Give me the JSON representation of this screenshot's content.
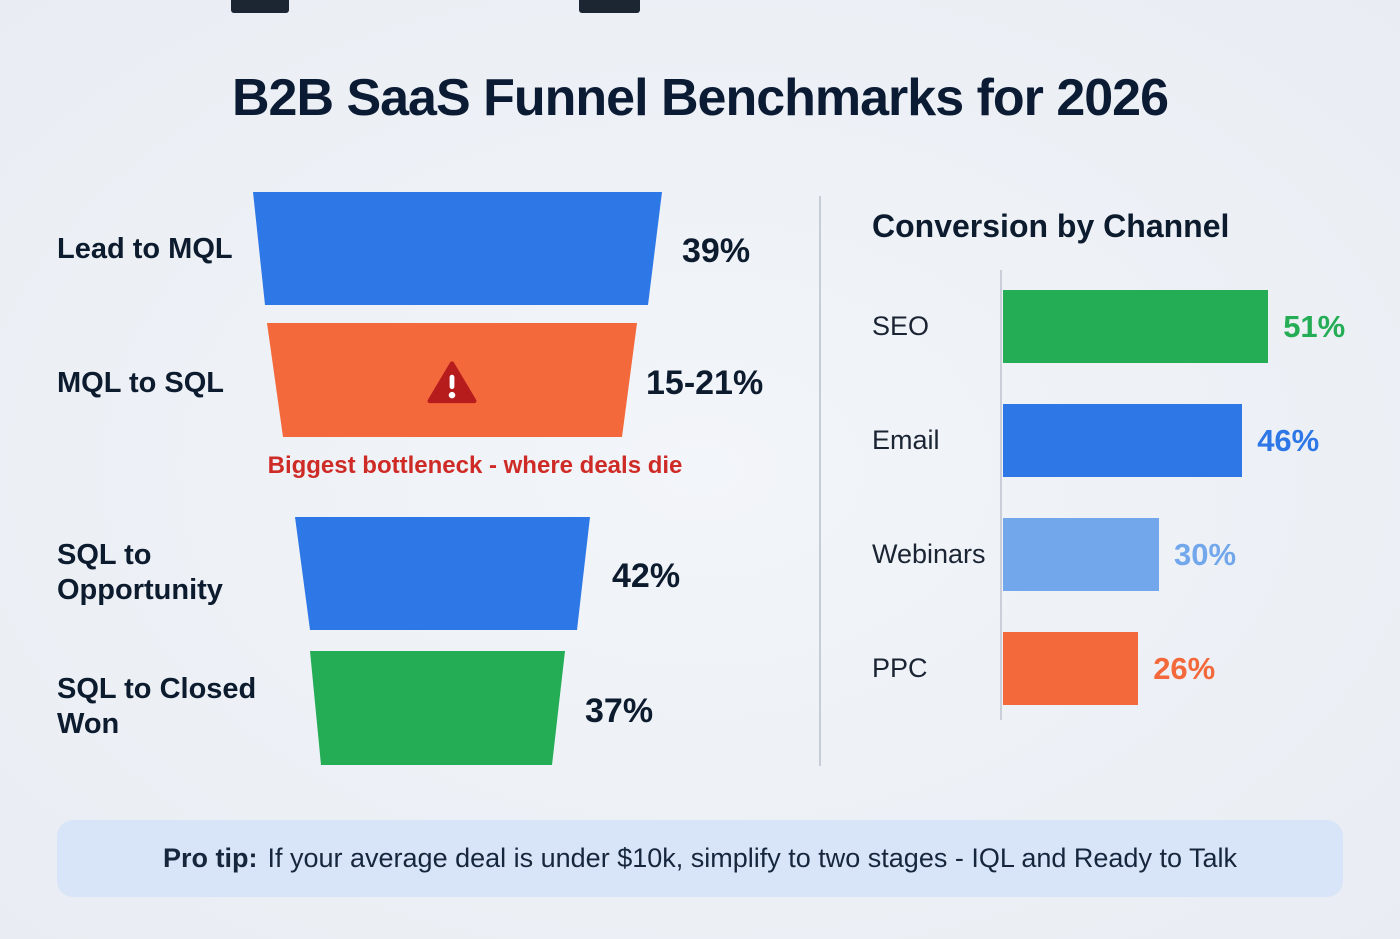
{
  "title": "B2B SaaS Funnel Benchmarks for 2026",
  "colors": {
    "blue": "#2e77e6",
    "orange": "#f4693b",
    "green": "#25ad56",
    "light_blue": "#72a7ec",
    "warning_red": "#b71c1c",
    "annotation_red": "#cf2b26"
  },
  "chart_data": [
    {
      "type": "funnel",
      "title": "",
      "stages": [
        {
          "label": "Lead to MQL",
          "value": "39%",
          "color": "#2e77e6"
        },
        {
          "label": "MQL to SQL",
          "value": "15-21%",
          "color": "#f4693b",
          "warning": true,
          "annotation": "Biggest bottleneck - where deals die"
        },
        {
          "label": "SQL to Opportunity",
          "value": "42%",
          "color": "#2e77e6"
        },
        {
          "label": "SQL to Closed Won",
          "value": "37%",
          "color": "#25ad56"
        }
      ]
    },
    {
      "type": "bar",
      "title": "Conversion by Channel",
      "orientation": "horizontal",
      "categories": [
        "SEO",
        "Email",
        "Webinars",
        "PPC"
      ],
      "values": [
        51,
        46,
        30,
        26
      ],
      "value_labels": [
        "51%",
        "46%",
        "30%",
        "26%"
      ],
      "bar_colors": [
        "#25ad56",
        "#2e77e6",
        "#72a7ec",
        "#f4693b"
      ],
      "xlim": [
        0,
        55
      ],
      "grid": false,
      "legend": "none"
    }
  ],
  "pro_tip": {
    "label": "Pro tip:",
    "text": "If your average deal is under $10k, simplify to two stages - IQL and Ready to Talk"
  }
}
